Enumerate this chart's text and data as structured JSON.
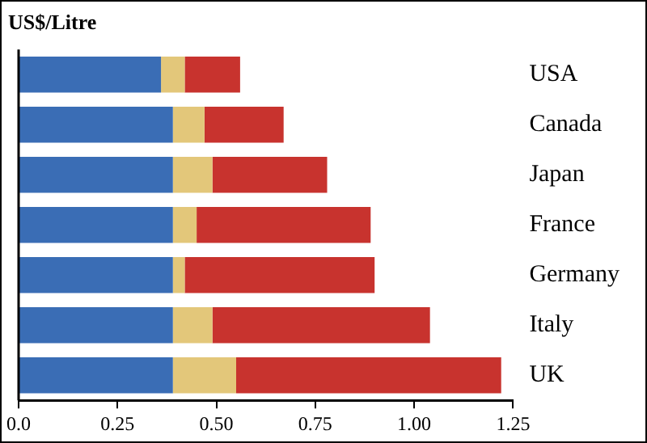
{
  "chart_data": {
    "type": "bar",
    "orientation": "horizontal",
    "stacked": true,
    "title": "US$/Litre",
    "categories": [
      "USA",
      "Canada",
      "Japan",
      "France",
      "Germany",
      "Italy",
      "UK"
    ],
    "series": [
      {
        "color": "#3a6db5",
        "values": [
          0.36,
          0.39,
          0.39,
          0.39,
          0.39,
          0.39,
          0.39
        ]
      },
      {
        "color": "#e3c77a",
        "values": [
          0.06,
          0.08,
          0.1,
          0.06,
          0.03,
          0.1,
          0.16
        ]
      },
      {
        "color": "#c8332e",
        "values": [
          0.14,
          0.2,
          0.29,
          0.44,
          0.48,
          0.55,
          0.67
        ]
      }
    ],
    "xlim": [
      0,
      1.25
    ],
    "xticks": [
      {
        "value": 0,
        "label": "0.0"
      },
      0.25,
      {
        "value": 0.5,
        "label": "0.50"
      },
      0.75,
      {
        "value": 1,
        "label": "1.00"
      },
      1.25
    ],
    "grid": false,
    "legend": false
  }
}
